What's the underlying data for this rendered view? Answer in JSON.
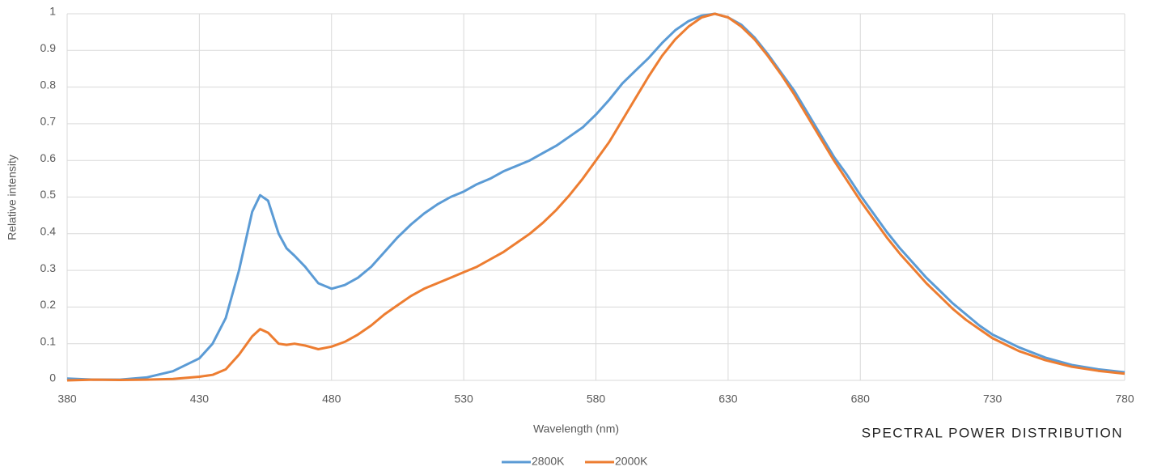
{
  "chart_data": {
    "type": "line",
    "title": "SPECTRAL POWER DISTRIBUTION",
    "x_label": "Wavelength (nm)",
    "y_label": "Relative intensity",
    "x": [
      380,
      390,
      400,
      410,
      420,
      430,
      435,
      440,
      445,
      450,
      453,
      456,
      460,
      463,
      466,
      470,
      475,
      480,
      485,
      490,
      495,
      500,
      505,
      510,
      515,
      520,
      525,
      530,
      535,
      540,
      545,
      550,
      555,
      560,
      565,
      570,
      575,
      580,
      585,
      590,
      595,
      600,
      605,
      610,
      615,
      620,
      625,
      630,
      635,
      640,
      645,
      650,
      655,
      660,
      665,
      670,
      675,
      680,
      685,
      690,
      695,
      700,
      705,
      710,
      715,
      720,
      725,
      730,
      740,
      750,
      760,
      770,
      780
    ],
    "series": [
      {
        "name": "2800K",
        "color": "#5b9bd5",
        "values": [
          0.005,
          0.002,
          0.002,
          0.008,
          0.025,
          0.06,
          0.1,
          0.17,
          0.3,
          0.46,
          0.505,
          0.49,
          0.4,
          0.36,
          0.34,
          0.31,
          0.265,
          0.25,
          0.26,
          0.28,
          0.31,
          0.35,
          0.39,
          0.425,
          0.455,
          0.48,
          0.5,
          0.515,
          0.535,
          0.55,
          0.57,
          0.585,
          0.6,
          0.62,
          0.64,
          0.665,
          0.69,
          0.725,
          0.765,
          0.81,
          0.845,
          0.88,
          0.92,
          0.955,
          0.98,
          0.995,
          1.0,
          0.99,
          0.97,
          0.935,
          0.89,
          0.84,
          0.79,
          0.73,
          0.67,
          0.61,
          0.56,
          0.505,
          0.455,
          0.405,
          0.36,
          0.32,
          0.28,
          0.245,
          0.21,
          0.18,
          0.15,
          0.125,
          0.09,
          0.062,
          0.042,
          0.03,
          0.022
        ]
      },
      {
        "name": "2000K",
        "color": "#ed7d31",
        "values": [
          0,
          0.002,
          0.001,
          0.002,
          0.004,
          0.01,
          0.015,
          0.03,
          0.07,
          0.12,
          0.14,
          0.13,
          0.1,
          0.097,
          0.1,
          0.095,
          0.085,
          0.092,
          0.105,
          0.125,
          0.15,
          0.18,
          0.205,
          0.23,
          0.25,
          0.265,
          0.28,
          0.295,
          0.31,
          0.33,
          0.35,
          0.375,
          0.4,
          0.43,
          0.465,
          0.505,
          0.55,
          0.6,
          0.65,
          0.71,
          0.77,
          0.83,
          0.885,
          0.93,
          0.965,
          0.99,
          1.0,
          0.99,
          0.965,
          0.93,
          0.885,
          0.835,
          0.78,
          0.72,
          0.66,
          0.6,
          0.545,
          0.49,
          0.44,
          0.39,
          0.345,
          0.305,
          0.265,
          0.23,
          0.195,
          0.165,
          0.14,
          0.115,
          0.08,
          0.055,
          0.037,
          0.026,
          0.018
        ]
      }
    ],
    "xlim": [
      380,
      780
    ],
    "xticks": [
      380,
      430,
      480,
      530,
      580,
      630,
      680,
      730,
      780
    ],
    "ylim": [
      0,
      1
    ],
    "yticks": [
      0,
      0.1,
      0.2,
      0.3,
      0.4,
      0.5,
      0.6,
      0.7,
      0.8,
      0.9,
      1
    ],
    "grid": true,
    "legend": "bottom"
  }
}
